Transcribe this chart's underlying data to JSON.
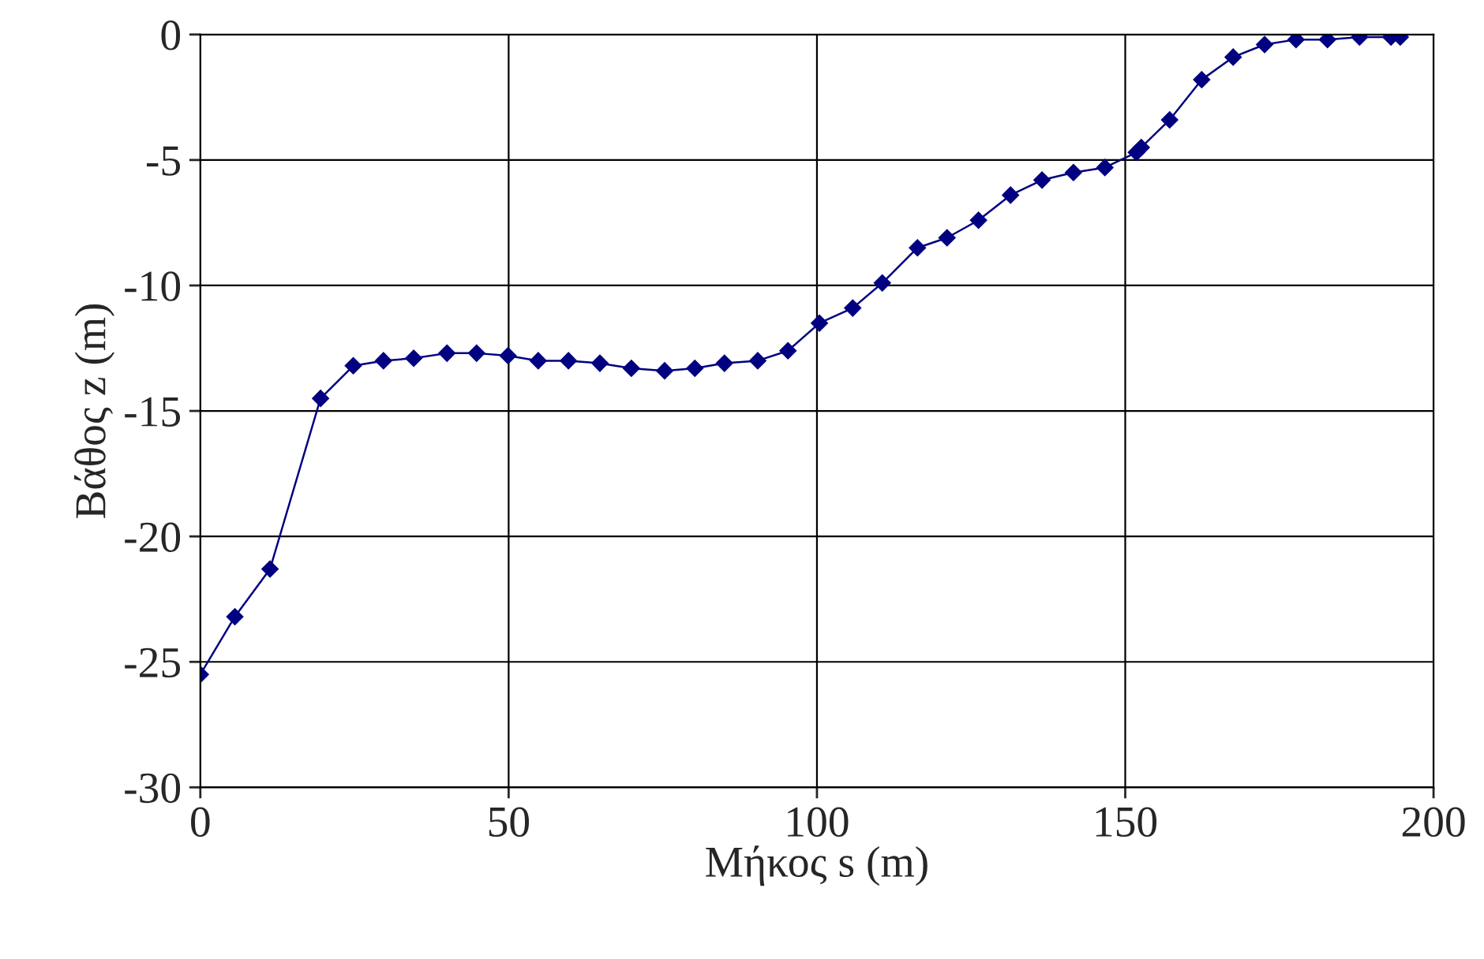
{
  "chart_data": {
    "type": "line",
    "xlabel": "Μήκος s (m)",
    "ylabel": "Βάθος z (m)",
    "xlim": [
      0,
      200
    ],
    "ylim": [
      -30,
      0
    ],
    "xticks": [
      0,
      50,
      100,
      150,
      200
    ],
    "yticks": [
      -30,
      -25,
      -20,
      -15,
      -10,
      -5,
      0
    ],
    "grid": true,
    "marker": "diamond",
    "line_style": "solid",
    "series": [
      {
        "color": "#000080",
        "x": [
          0,
          5.6,
          11.3,
          19.5,
          24.8,
          29.7,
          34.6,
          40,
          44.8,
          49.9,
          54.8,
          59.7,
          64.8,
          69.9,
          75.3,
          80.2,
          85,
          90.4,
          95.3,
          100.4,
          105.8,
          110.6,
          116.3,
          121.1,
          126.2,
          131.4,
          136.5,
          141.6,
          146.7,
          151.8,
          152.6,
          157.2,
          162.4,
          167.5,
          172.6,
          177.7,
          182.8,
          188,
          193.1,
          194.6
        ],
        "values": [
          -25.5,
          -23.2,
          -21.3,
          -14.5,
          -13.2,
          -13.0,
          -12.9,
          -12.7,
          -12.7,
          -12.8,
          -13.0,
          -13.0,
          -13.1,
          -13.3,
          -13.4,
          -13.3,
          -13.1,
          -13.0,
          -12.6,
          -11.5,
          -10.9,
          -9.9,
          -8.5,
          -8.1,
          -7.4,
          -6.4,
          -5.8,
          -5.5,
          -5.3,
          -4.7,
          -4.5,
          -3.4,
          -1.8,
          -0.9,
          -0.4,
          -0.2,
          -0.2,
          -0.1,
          -0.1,
          -0.1
        ]
      }
    ]
  }
}
